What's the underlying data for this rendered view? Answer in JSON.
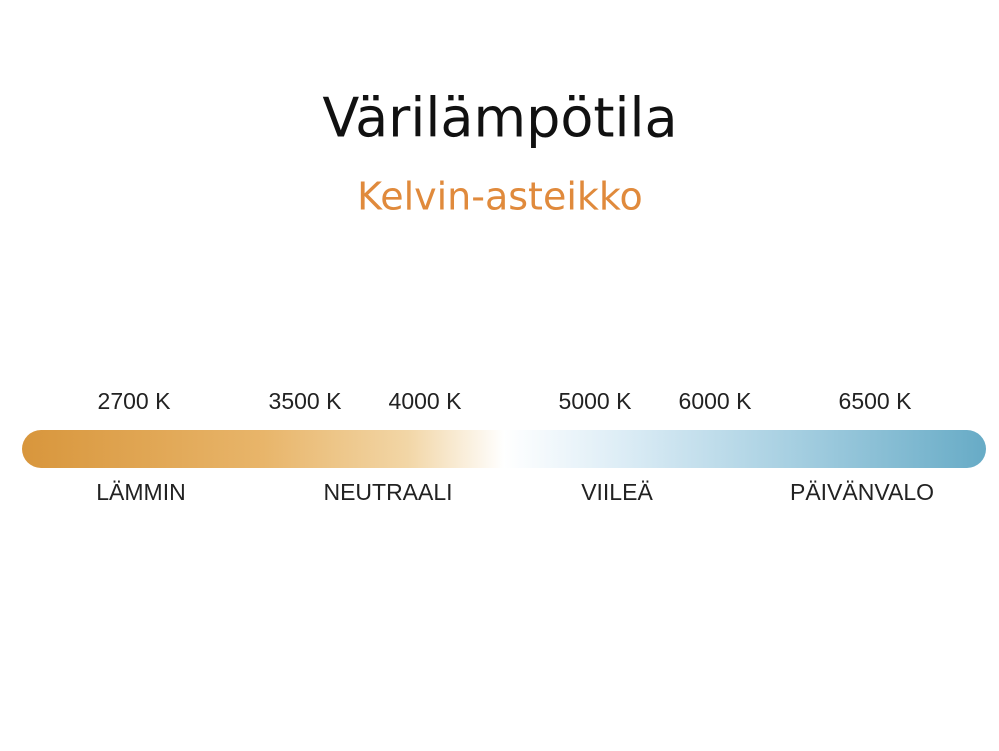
{
  "title": "Värilämpötila",
  "subtitle": "Kelvin-asteikko",
  "scale": {
    "temperatures": [
      "2700 K",
      "3500 K",
      "4000 K",
      "5000 K",
      "6000 K",
      "6500 K"
    ],
    "labels": [
      "LÄMMIN",
      "NEUTRAALI",
      "VIILEÄ",
      "PÄIVÄNVALO"
    ]
  }
}
